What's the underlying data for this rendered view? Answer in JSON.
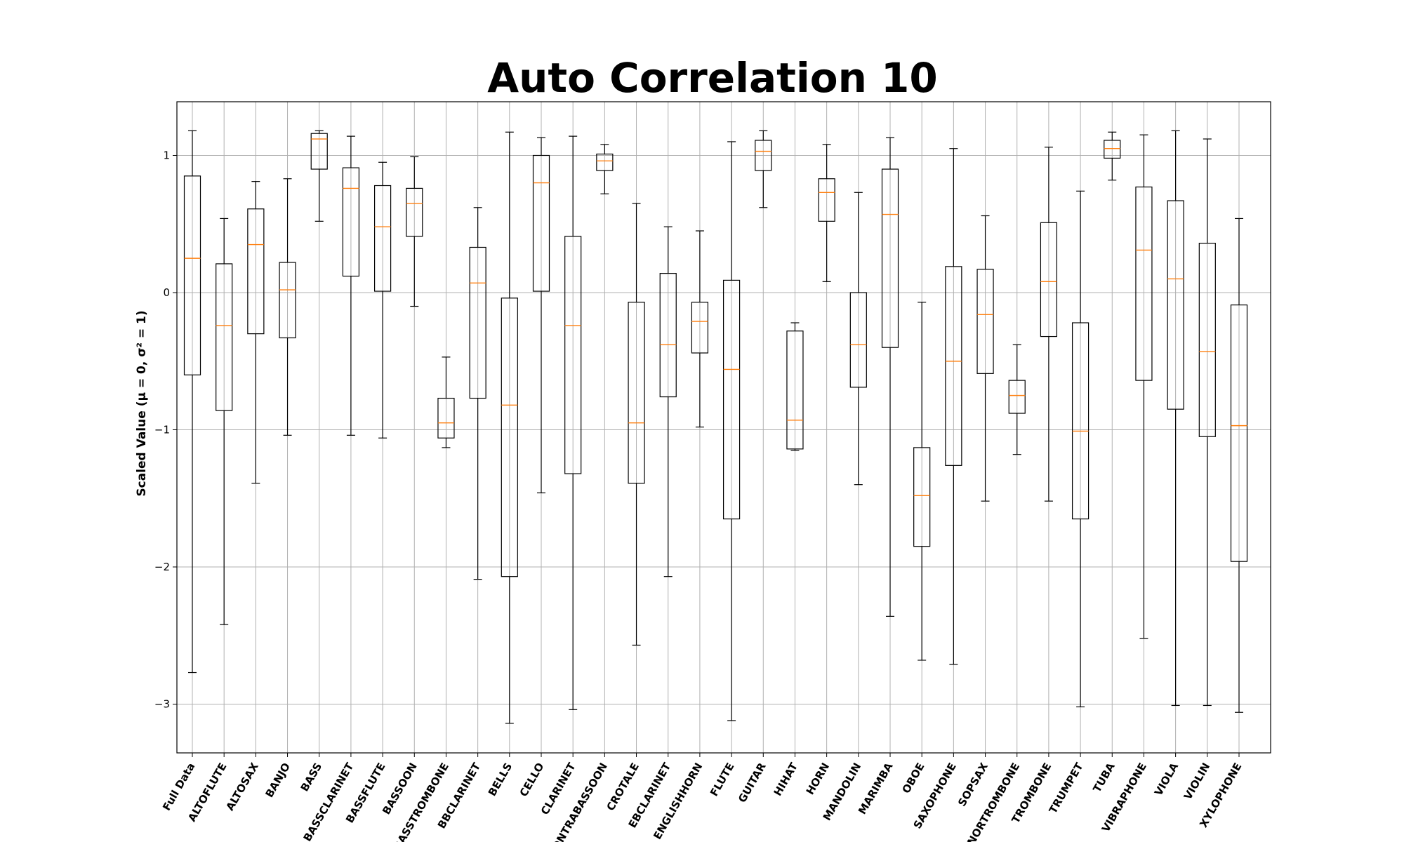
{
  "chart_data": {
    "type": "box",
    "title": "Auto Correlation 10",
    "ylabel": "Scaled Value (μ = 0, σ² = 1)",
    "xlabel": "",
    "ylim": [
      -3.35,
      1.4
    ],
    "yticks": [
      1,
      0,
      -1,
      -2,
      -3
    ],
    "grid": true,
    "colors": {
      "box": "#000000",
      "median": "#ff7f0e",
      "grid": "#b0b0b0"
    },
    "categories": [
      "Full Data",
      "ALTOFLUTE",
      "ALTOSAX",
      "BANJO",
      "BASS",
      "BASSCLARINET",
      "BASSFLUTE",
      "BASSOON",
      "BASSTROMBONE",
      "BBCLARINET",
      "BELLS",
      "CELLO",
      "CLARINET",
      "CONTRABASSOON",
      "CROTALE",
      "EBCLARINET",
      "ENGLISHHORN",
      "FLUTE",
      "GUITAR",
      "HIHAT",
      "HORN",
      "MANDOLIN",
      "MARIMBA",
      "OBOE",
      "SAXOPHONE",
      "SOPSAX",
      "TENORTROMBONE",
      "TROMBONE",
      "TRUMPET",
      "TUBA",
      "VIBRAPHONE",
      "VIOLA",
      "VIOLIN",
      "XYLOPHONE"
    ],
    "boxes": [
      {
        "whislo": -2.77,
        "q1": -0.6,
        "med": 0.25,
        "q3": 0.85,
        "whishi": 1.18
      },
      {
        "whislo": -2.42,
        "q1": -0.86,
        "med": -0.24,
        "q3": 0.21,
        "whishi": 0.54
      },
      {
        "whislo": -1.39,
        "q1": -0.3,
        "med": 0.35,
        "q3": 0.61,
        "whishi": 0.81
      },
      {
        "whislo": -1.04,
        "q1": -0.33,
        "med": 0.02,
        "q3": 0.22,
        "whishi": 0.83
      },
      {
        "whislo": 0.52,
        "q1": 0.9,
        "med": 1.12,
        "q3": 1.16,
        "whishi": 1.18
      },
      {
        "whislo": -1.04,
        "q1": 0.12,
        "med": 0.76,
        "q3": 0.91,
        "whishi": 1.14
      },
      {
        "whislo": -1.06,
        "q1": 0.01,
        "med": 0.48,
        "q3": 0.78,
        "whishi": 0.95
      },
      {
        "whislo": -0.1,
        "q1": 0.41,
        "med": 0.65,
        "q3": 0.76,
        "whishi": 0.99
      },
      {
        "whislo": -1.13,
        "q1": -1.06,
        "med": -0.95,
        "q3": -0.77,
        "whishi": -0.47
      },
      {
        "whislo": -2.09,
        "q1": -0.77,
        "med": 0.07,
        "q3": 0.33,
        "whishi": 0.62
      },
      {
        "whislo": -3.14,
        "q1": -2.07,
        "med": -0.82,
        "q3": -0.04,
        "whishi": 1.17
      },
      {
        "whislo": -1.46,
        "q1": 0.01,
        "med": 0.8,
        "q3": 1.0,
        "whishi": 1.13
      },
      {
        "whislo": -3.04,
        "q1": -1.32,
        "med": -0.24,
        "q3": 0.41,
        "whishi": 1.14
      },
      {
        "whislo": 0.72,
        "q1": 0.89,
        "med": 0.96,
        "q3": 1.01,
        "whishi": 1.08
      },
      {
        "whislo": -2.57,
        "q1": -1.39,
        "med": -0.95,
        "q3": -0.07,
        "whishi": 0.65
      },
      {
        "whislo": -2.07,
        "q1": -0.76,
        "med": -0.38,
        "q3": 0.14,
        "whishi": 0.48
      },
      {
        "whislo": -0.98,
        "q1": -0.44,
        "med": -0.21,
        "q3": -0.07,
        "whishi": 0.45
      },
      {
        "whislo": -3.12,
        "q1": -1.65,
        "med": -0.56,
        "q3": 0.09,
        "whishi": 1.1
      },
      {
        "whislo": 0.62,
        "q1": 0.89,
        "med": 1.03,
        "q3": 1.11,
        "whishi": 1.18
      },
      {
        "whislo": -1.15,
        "q1": -1.14,
        "med": -0.93,
        "q3": -0.28,
        "whishi": -0.22
      },
      {
        "whislo": 0.08,
        "q1": 0.52,
        "med": 0.73,
        "q3": 0.83,
        "whishi": 1.08
      },
      {
        "whislo": -1.4,
        "q1": -0.69,
        "med": -0.38,
        "q3": 0.0,
        "whishi": 0.73
      },
      {
        "whislo": -2.36,
        "q1": -0.4,
        "med": 0.57,
        "q3": 0.9,
        "whishi": 1.13
      },
      {
        "whislo": -2.68,
        "q1": -1.85,
        "med": -1.48,
        "q3": -1.13,
        "whishi": -0.07
      },
      {
        "whislo": -2.71,
        "q1": -1.26,
        "med": -0.5,
        "q3": 0.19,
        "whishi": 1.05
      },
      {
        "whislo": -1.52,
        "q1": -0.59,
        "med": -0.16,
        "q3": 0.17,
        "whishi": 0.56
      },
      {
        "whislo": -1.18,
        "q1": -0.88,
        "med": -0.75,
        "q3": -0.64,
        "whishi": -0.38
      },
      {
        "whislo": -1.52,
        "q1": -0.32,
        "med": 0.08,
        "q3": 0.51,
        "whishi": 1.06
      },
      {
        "whislo": -3.02,
        "q1": -1.65,
        "med": -1.01,
        "q3": -0.22,
        "whishi": 0.74
      },
      {
        "whislo": 0.82,
        "q1": 0.98,
        "med": 1.05,
        "q3": 1.11,
        "whishi": 1.17
      },
      {
        "whislo": -2.52,
        "q1": -0.64,
        "med": 0.31,
        "q3": 0.77,
        "whishi": 1.15
      },
      {
        "whislo": -3.01,
        "q1": -0.85,
        "med": 0.1,
        "q3": 0.67,
        "whishi": 1.18
      },
      {
        "whislo": -3.01,
        "q1": -1.05,
        "med": -0.43,
        "q3": 0.36,
        "whishi": 1.12
      },
      {
        "whislo": -3.06,
        "q1": -1.96,
        "med": -0.97,
        "q3": -0.09,
        "whishi": 0.54
      }
    ]
  }
}
